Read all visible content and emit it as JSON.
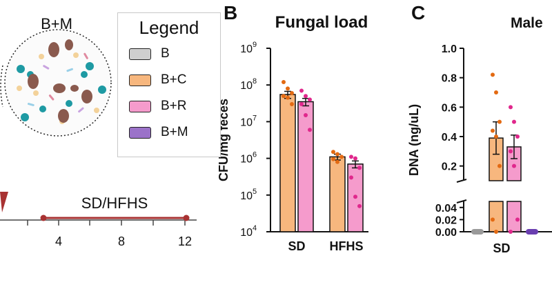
{
  "colors": {
    "B": "#cfcfcf",
    "B+C": "#f7b77e",
    "B+R": "#f59bcc",
    "B+M": "#9b72c9",
    "dot_C": "#e36a12",
    "dot_R": "#e0278c",
    "timeline": "#a83232"
  },
  "panel_a": {
    "group_label": "B+M",
    "timeline_label": "SD/HFHS",
    "ticks": [
      "4",
      "8",
      "12"
    ]
  },
  "legend": {
    "title": "Legend",
    "items": [
      {
        "label": "B",
        "color": "#cfcfcf"
      },
      {
        "label": "B+C",
        "color": "#f7b77e"
      },
      {
        "label": "B+R",
        "color": "#f59bcc"
      },
      {
        "label": "B+M",
        "color": "#9b72c9"
      }
    ]
  },
  "panel_b": {
    "letter": "B"
  },
  "panel_c": {
    "letter": "C"
  },
  "chart_data": [
    {
      "type": "bar",
      "title": "Fungal load",
      "ylabel": "CFU/mg feces",
      "yscale": "log",
      "ylim": [
        10000,
        1000000000
      ],
      "ytick_bases": [
        "10",
        "10",
        "10",
        "10",
        "10",
        "10"
      ],
      "ytick_exps": [
        "4",
        "5",
        "6",
        "7",
        "8",
        "9"
      ],
      "categories": [
        "SD",
        "HFHS"
      ],
      "series": [
        {
          "name": "B+C",
          "values": [
            55000000,
            1100000
          ],
          "errors": [
            12000000,
            200000
          ],
          "points": [
            [
              120000000,
              80000000,
              60000000,
              50000000,
              45000000,
              30000000
            ],
            [
              1500000,
              1300000,
              1100000,
              950000,
              800000
            ]
          ]
        },
        {
          "name": "B+R",
          "values": [
            35000000,
            700000
          ],
          "errors": [
            8000000,
            150000
          ],
          "points": [
            [
              70000000,
              50000000,
              40000000,
              30000000,
              15000000,
              6000000
            ],
            [
              1100000,
              1000000,
              550000,
              300000,
              90000,
              50000
            ]
          ]
        }
      ]
    },
    {
      "type": "bar",
      "title": "Male",
      "ylabel": "DNA (ng/uL)",
      "broken_axis": true,
      "ylim_upper": [
        0.1,
        1.0
      ],
      "ylim_lower": [
        0,
        0.05
      ],
      "ytick_upper": [
        "0.2",
        "0.4",
        "0.6",
        "0.8",
        "1.0"
      ],
      "ytick_lower": [
        "0.00",
        "0.02",
        "0.04"
      ],
      "categories": [
        "SD"
      ],
      "series": [
        {
          "name": "B",
          "values": [
            0.0
          ],
          "errors": [
            0.0
          ],
          "points": [
            [
              0.0,
              0.0,
              0.0
            ]
          ]
        },
        {
          "name": "B+C",
          "values": [
            0.39
          ],
          "errors": [
            0.11
          ],
          "points": [
            [
              0.82,
              0.7,
              0.5,
              0.44,
              0.4,
              0.2,
              0.02,
              0.0
            ]
          ]
        },
        {
          "name": "B+R",
          "values": [
            0.33
          ],
          "errors": [
            0.08
          ],
          "points": [
            [
              0.6,
              0.5,
              0.4,
              0.3,
              0.2,
              0.02,
              0.0
            ]
          ]
        },
        {
          "name": "B+M",
          "values": [
            0.0
          ],
          "errors": [
            0.0
          ],
          "points": [
            [
              0.0,
              0.0,
              0.0
            ]
          ]
        }
      ]
    }
  ]
}
